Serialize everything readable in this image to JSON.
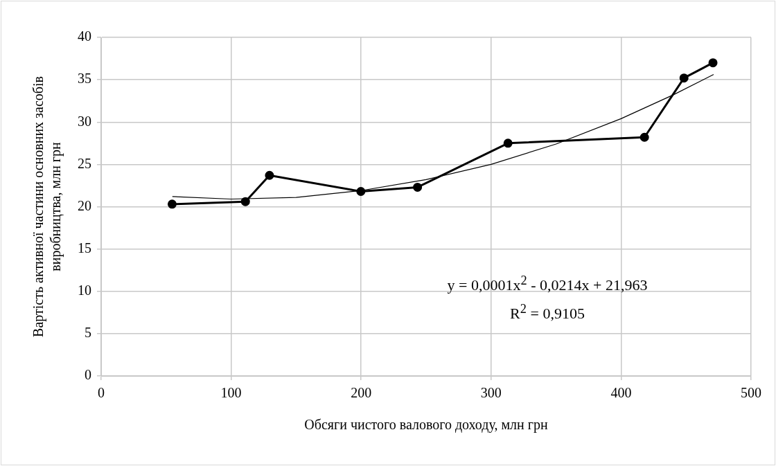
{
  "chart_data": {
    "type": "line",
    "xlabel": "Обсяги чистого валового доходу, млн грн",
    "ylabel": "Вартість активної частини основних засобів виробництва, млн грн",
    "xlim": [
      0,
      500
    ],
    "xticks": [
      0,
      100,
      200,
      300,
      400,
      500
    ],
    "ylim": [
      0,
      40
    ],
    "yticks": [
      0,
      5,
      10,
      15,
      20,
      25,
      30,
      35,
      40
    ],
    "grid": true,
    "legend": false,
    "line_style": "solid",
    "series": [
      {
        "type": "line",
        "color": "#000000",
        "marker": "circle",
        "x": [
          54.6,
          111,
          129.5,
          199.8,
          243.4,
          313,
          418,
          448.4,
          470.7
        ],
        "values": [
          20.3,
          20.6,
          23.7,
          21.8,
          22.3,
          27.5,
          28.2,
          35.2,
          37.0
        ]
      },
      {
        "type": "line",
        "color": "#000000",
        "marker": "none",
        "x": [
          55,
          100,
          150,
          200,
          250,
          300,
          350,
          400,
          440,
          471
        ],
        "values": [
          21.2,
          20.9,
          21.1,
          21.9,
          23.2,
          25.0,
          27.4,
          30.4,
          33.2,
          35.6
        ]
      }
    ],
    "annotations": [
      "y = 0,0001x$^{2}$ - 0,0214x + 21,963",
      "R$^{2}$ = 0,9105"
    ]
  }
}
